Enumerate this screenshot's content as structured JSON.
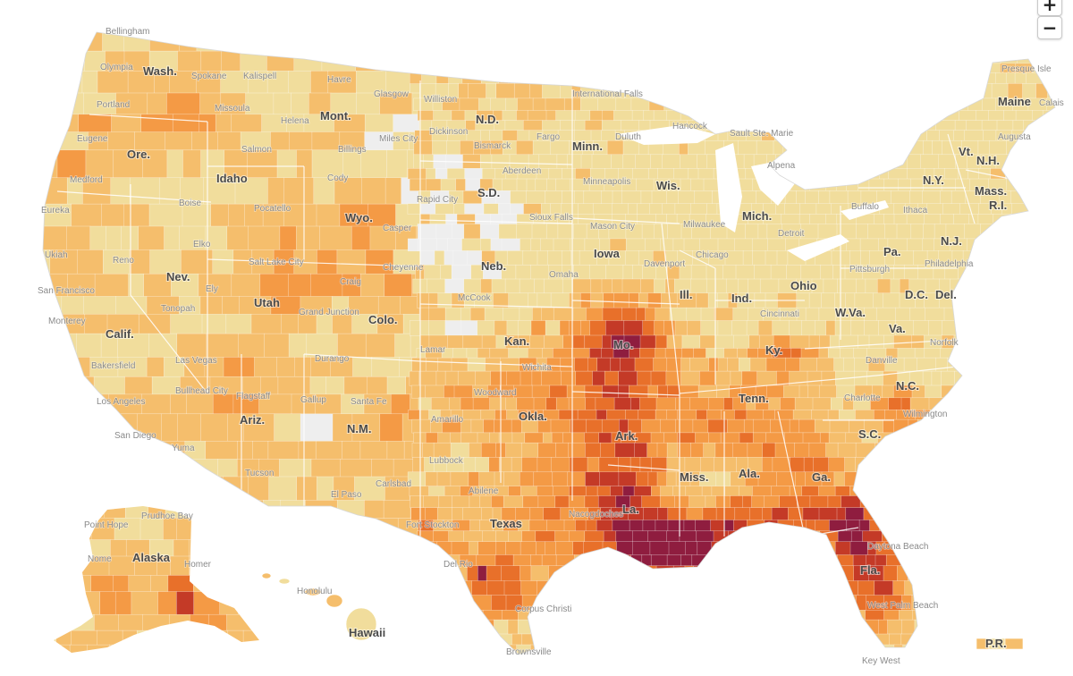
{
  "zoom": {
    "in_label": "+",
    "out_label": "−"
  },
  "colors": {
    "background": "#ffffff",
    "no_data": "#eeeeee",
    "level_1": "#f1dd9c",
    "level_2": "#f5be6c",
    "level_3": "#f49a45",
    "level_4": "#e8702a",
    "level_5": "#c43a27",
    "level_6": "#8f1d3f",
    "state_border": "#ffffff"
  },
  "states": {
    "wa": "Wash.",
    "or": "Ore.",
    "ca": "Calif.",
    "nv": "Nev.",
    "id": "Idaho",
    "mt": "Mont.",
    "wy": "Wyo.",
    "ut": "Utah",
    "az": "Ariz.",
    "co": "Colo.",
    "nm": "N.M.",
    "nd": "N.D.",
    "sd": "S.D.",
    "ne": "Neb.",
    "ks": "Kan.",
    "ok": "Okla.",
    "tx": "Texas",
    "mn": "Minn.",
    "ia": "Iowa",
    "mo": "Mo.",
    "ark": "Ark.",
    "la": "La.",
    "wi": "Wis.",
    "il": "Ill.",
    "mi": "Mich.",
    "in": "Ind.",
    "oh": "Ohio",
    "ky": "Ky.",
    "tn": "Tenn.",
    "ms": "Miss.",
    "al": "Ala.",
    "ga": "Ga.",
    "fl": "Fla.",
    "sc": "S.C.",
    "nc": "N.C.",
    "va": "Va.",
    "wv": "W.Va.",
    "pa": "Pa.",
    "ny": "N.Y.",
    "vt": "Vt.",
    "nh": "N.H.",
    "me": "Maine",
    "ma": "Mass.",
    "ri": "R.I.",
    "nj": "N.J.",
    "de": "Del.",
    "dc": "D.C.",
    "ak": "Alaska",
    "hi": "Hawaii",
    "pr": "P.R."
  },
  "cities": {
    "bellingham": "Bellingham",
    "olympia": "Olympia",
    "portland": "Portland",
    "eugene": "Eugene",
    "medford": "Medford",
    "eureka": "Eureka",
    "ukiah": "Ukiah",
    "san_francisco": "San Francisco",
    "monterey": "Monterey",
    "bakersfield": "Bakersfield",
    "los_angeles": "Los Angeles",
    "san_diego": "San Diego",
    "spokane": "Spokane",
    "kalispell": "Kalispell",
    "havre": "Havre",
    "glasgow": "Glasgow",
    "williston": "Williston",
    "missoula": "Missoula",
    "helena": "Helena",
    "salmon": "Salmon",
    "billings": "Billings",
    "miles_city": "Miles City",
    "dickinson": "Dickinson",
    "boise": "Boise",
    "pocatello": "Pocatello",
    "cody": "Cody",
    "casper": "Casper",
    "cheyenne": "Cheyenne",
    "reno": "Reno",
    "elko": "Elko",
    "ely": "Ely",
    "tonopah": "Tonopah",
    "salt_lake_city": "Salt Lake City",
    "grand_junction": "Grand Junction",
    "craig": "Craig",
    "durango": "Durango",
    "las_vegas": "Las Vegas",
    "bullhead_city": "Bullhead City",
    "flagstaff": "Flagstaff",
    "gallup": "Gallup",
    "santa_fe": "Santa Fe",
    "yuma": "Yuma",
    "tucson": "Tucson",
    "el_paso": "El Paso",
    "lubbock": "Lubbock",
    "amarillo": "Amarillo",
    "carlsbad": "Carlsbad",
    "fargo": "Fargo",
    "bismarck": "Bismarck",
    "aberdeen": "Aberdeen",
    "rapid_city": "Rapid City",
    "sioux_falls": "Sioux Falls",
    "mason_city": "Mason City",
    "mccook": "McCook",
    "omaha": "Omaha",
    "lamar": "Lamar",
    "wichita": "Wichita",
    "woodward": "Woodward",
    "abilene": "Abilene",
    "fort_stockton": "Fort Stockton",
    "del_rio": "Del Rio",
    "nacogdoches": "Nacogdoches",
    "corpus_christi": "Corpus Christi",
    "brownsville": "Brownsville",
    "international_falls": "International Falls",
    "duluth": "Duluth",
    "hancock": "Hancock",
    "minneapolis": "Minneapolis",
    "milwaukee": "Milwaukee",
    "chicago": "Chicago",
    "davenport": "Davenport",
    "detroit": "Detroit",
    "alpena": "Alpena",
    "sault_ste_marie": "Sault Ste. Marie",
    "cincinnati": "Cincinnati",
    "pittsburgh": "Pittsburgh",
    "buffalo": "Buffalo",
    "ithaca": "Ithaca",
    "philadelphia": "Philadelphia",
    "norfolk": "Norfolk",
    "danville": "Danville",
    "charlotte": "Charlotte",
    "wilmington": "Wilmington",
    "daytona_beach": "Daytona Beach",
    "west_palm_beach": "West Palm Beach",
    "key_west": "Key West",
    "presque_isle": "Presque Isle",
    "augusta": "Augusta",
    "calais": "Calais",
    "point_hope": "Point Hope",
    "prudhoe_bay": "Prudhoe Bay",
    "nome": "Nome",
    "homer": "Homer",
    "honolulu": "Honolulu"
  }
}
